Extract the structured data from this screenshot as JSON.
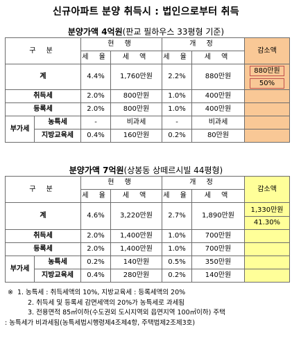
{
  "title": "신규아파트 분양 취득시 : 법인으로부터 취득",
  "sections": [
    {
      "subtitle_bold": "분양가액 4억원",
      "subtitle_rest": "(판교 필하우스 33평형 기준)",
      "header": {
        "gubun": "구 분",
        "current": "현 행",
        "revised": "개 정",
        "reduction": "감소액",
        "rate": "세 율",
        "amount": "세 액"
      },
      "rows": {
        "total": {
          "label": "계",
          "cur_rate": "4.4%",
          "cur_amt": "1,760만원",
          "rev_rate": "2.2%",
          "rev_amt": "880만원",
          "reduction_amt": "880만원",
          "reduction_pct": "50%"
        },
        "acq": {
          "label": "취득세",
          "cur_rate": "2.0%",
          "cur_amt": "800만원",
          "rev_rate": "1.0%",
          "rev_amt": "400만원"
        },
        "reg": {
          "label": "등록세",
          "cur_rate": "2.0%",
          "cur_amt": "800만원",
          "rev_rate": "1.0%",
          "rev_amt": "400만원"
        },
        "group": {
          "label": "부가세"
        },
        "farm": {
          "label": "농특세",
          "cur_rate": "-",
          "cur_amt": "비과세",
          "rev_rate": "-",
          "rev_amt": "비과세"
        },
        "edu": {
          "label": "지방교육세",
          "cur_rate": "0.4%",
          "cur_amt": "160만원",
          "rev_rate": "0.2%",
          "rev_amt": "80만원"
        }
      }
    },
    {
      "subtitle_bold": "분양가액 7억원",
      "subtitle_rest": "(상봉동 상떼르시빌 44평형)",
      "header": {
        "gubun": "구 분",
        "current": "현 행",
        "revised": "개 정",
        "reduction": "감소액",
        "rate": "세 율",
        "amount": "세 액"
      },
      "rows": {
        "total": {
          "label": "계",
          "cur_rate": "4.6%",
          "cur_amt": "3,220만원",
          "rev_rate": "2.7%",
          "rev_amt": "1,890만원",
          "reduction_amt": "1,330만원",
          "reduction_pct": "41.30%"
        },
        "acq": {
          "label": "취득세",
          "cur_rate": "2.0%",
          "cur_amt": "1,400만원",
          "rev_rate": "1.0%",
          "rev_amt": "700만원"
        },
        "reg": {
          "label": "등록세",
          "cur_rate": "2.0%",
          "cur_amt": "1,400만원",
          "rev_rate": "1.0%",
          "rev_amt": "700만원"
        },
        "group": {
          "label": "부가세"
        },
        "farm": {
          "label": "농특세",
          "cur_rate": "0.2%",
          "cur_amt": "140만원",
          "rev_rate": "0.5%",
          "rev_amt": "350만원"
        },
        "edu": {
          "label": "지방교육세",
          "cur_rate": "0.4%",
          "cur_amt": "280만원",
          "rev_rate": "0.2%",
          "rev_amt": "140만원"
        }
      }
    }
  ],
  "notes": {
    "mark": "※",
    "n1": "1. 농특세 : 취득세액의 10%, 지방교육세 : 등록세액의 20%",
    "n2": "2. 취득세 및 등록세 감면세액의 20%가 농특세로 과세됨",
    "n3": "3. 전용면적 85㎡이하(수도권외 도시지역외 읍면지역 100㎡이하) 주택",
    "n4": ": 농특세가 비과세됨(농특세법시행령제4조제4항, 주택법제2조제3호)"
  }
}
